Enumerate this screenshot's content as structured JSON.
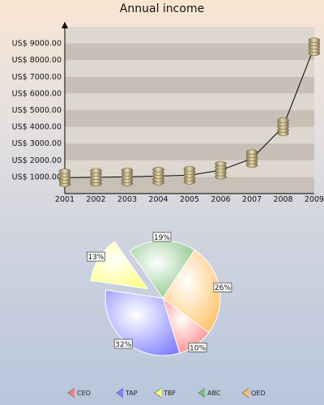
{
  "chart_data": [
    {
      "type": "line",
      "title": "Annual income",
      "x": [
        "2001",
        "2002",
        "2003",
        "2004",
        "2005",
        "2006",
        "2007",
        "2008",
        "2009"
      ],
      "series": [
        {
          "values": [
            950,
            980,
            1000,
            1050,
            1100,
            1400,
            2100,
            4000,
            8800
          ]
        }
      ],
      "ylim": [
        0,
        10000
      ],
      "yticks": [
        1000,
        2000,
        3000,
        4000,
        5000,
        6000,
        7000,
        8000,
        9000
      ],
      "ytick_labels": [
        "US$ 1000.00",
        "US$ 2000.00",
        "US$ 3000.00",
        "US$ 4000.00",
        "US$ 5000.00",
        "US$ 6000.00",
        "US$ 7000.00",
        "US$ 8000.00",
        "US$ 9000.00"
      ],
      "marker": "coin-stack",
      "grid": "horizontal-bands",
      "colors": {
        "line": "#000000",
        "band_dark": "#c8bfb6",
        "band_light": "#ddd7cf"
      }
    },
    {
      "type": "pie",
      "categories": [
        "CEO",
        "TAP",
        "TBF",
        "ABC",
        "QED"
      ],
      "values": [
        10,
        32,
        13,
        19,
        26
      ],
      "labels": [
        "10%",
        "32%",
        "13%",
        "19%",
        "26%"
      ],
      "exploded": [
        "TBF"
      ],
      "colors": [
        "#ff8080",
        "#8080ff",
        "#ffff80",
        "#80c080",
        "#ffc060"
      ],
      "legend": "bottom"
    }
  ]
}
